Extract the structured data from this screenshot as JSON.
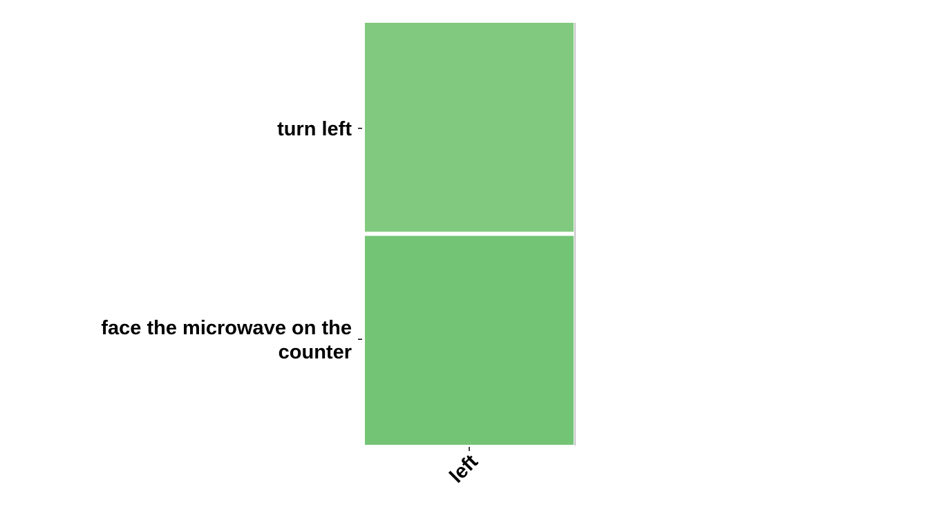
{
  "chart_data": {
    "type": "heatmap",
    "title": "",
    "xlabel": "",
    "ylabel": "",
    "x_categories": [
      "left"
    ],
    "y_categories": [
      "turn left",
      "face the microwave on the counter"
    ],
    "y_label_lines": [
      [
        "turn left"
      ],
      [
        "face the microwave on the",
        "counter"
      ]
    ],
    "cells": [
      {
        "x": "left",
        "y": "turn left",
        "color": "#81c97e"
      },
      {
        "x": "left",
        "y": "face the microwave on the counter",
        "color": "#74c476"
      }
    ],
    "colorbar": false,
    "grid": false
  }
}
